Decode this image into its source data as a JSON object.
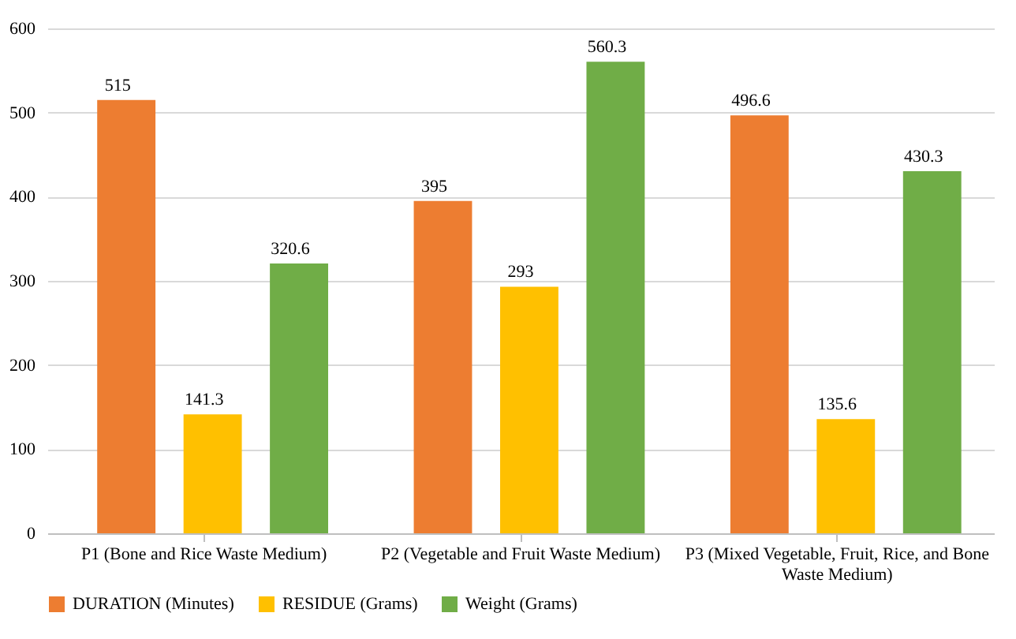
{
  "chart_data": {
    "type": "bar",
    "categories": [
      "P1 (Bone and Rice Waste Medium)",
      "P2 (Vegetable and Fruit Waste Medium)",
      "P3 (Mixed Vegetable, Fruit, Rice, and Bone Waste Medium)"
    ],
    "series": [
      {
        "name": "DURATION (Minutes)",
        "color": "#ed7d31",
        "values": [
          515,
          395,
          496.6
        ]
      },
      {
        "name": "RESIDUE (Grams)",
        "color": "#ffc000",
        "values": [
          141.3,
          293,
          135.6
        ]
      },
      {
        "name": "Weight (Grams)",
        "color": "#70ad47",
        "values": [
          320.6,
          560.3,
          430.3
        ]
      }
    ],
    "ylim": [
      0,
      600
    ],
    "yticks": [
      0,
      100,
      200,
      300,
      400,
      500,
      600
    ],
    "grid": "y",
    "legend": "bottom",
    "data_labels": true
  }
}
